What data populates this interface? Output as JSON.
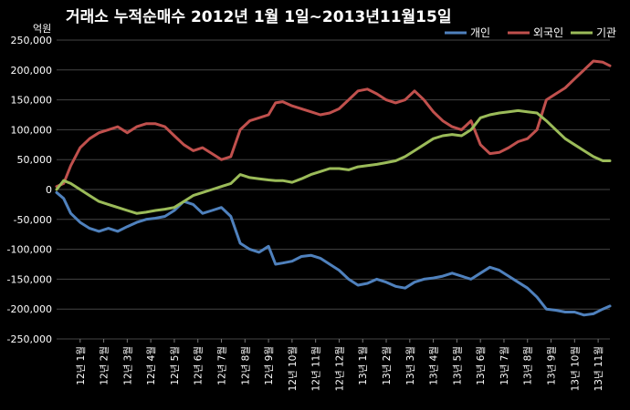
{
  "chart_data": {
    "type": "line",
    "title": "거래소 누적순매수 2012년 1월 1일~2013년11월15일",
    "unit_label": "억원",
    "ylim": [
      -250000,
      250000
    ],
    "yticks": [
      250000,
      200000,
      150000,
      100000,
      50000,
      0,
      -50000,
      -100000,
      -150000,
      -200000,
      -250000
    ],
    "ytick_labels": [
      "250,000",
      "200,000",
      "150,000",
      "100,000",
      "50,000",
      "0",
      "-50,000",
      "-100,000",
      "-150,000",
      "-200,000",
      "-250,000"
    ],
    "xlim": [
      0,
      23.5
    ],
    "categories": [
      "12년 1월",
      "12년 2월",
      "12년 3월",
      "12년 4월",
      "12년 5월",
      "12년 6월",
      "12년 7월",
      "12년 8월",
      "12년 9월",
      "12년 10월",
      "12년 11월",
      "12년 12월",
      "13년 1월",
      "13년 2월",
      "13년 3월",
      "13년 4월",
      "13년 5월",
      "13년 6월",
      "13년 7월",
      "13년 8월",
      "13년 9월",
      "13년 10월",
      "13년 11월"
    ],
    "legend_position": "top-right",
    "grid": true,
    "series": [
      {
        "name": "개인",
        "color": "#4f81bd",
        "x": [
          0,
          0.3,
          0.6,
          1.0,
          1.4,
          1.8,
          2.2,
          2.6,
          3.0,
          3.4,
          3.8,
          4.2,
          4.6,
          5.0,
          5.4,
          5.8,
          6.2,
          6.6,
          7.0,
          7.4,
          7.8,
          8.2,
          8.6,
          9.0,
          9.3,
          9.6,
          10.0,
          10.4,
          10.8,
          11.2,
          11.6,
          12.0,
          12.4,
          12.8,
          13.2,
          13.6,
          14.0,
          14.4,
          14.8,
          15.2,
          15.6,
          16.0,
          16.4,
          16.8,
          17.2,
          17.6,
          18.0,
          18.4,
          18.8,
          19.2,
          19.6,
          20.0,
          20.4,
          20.8,
          21.2,
          21.6,
          22.0,
          22.4,
          22.8,
          23.2,
          23.5
        ],
        "y": [
          -5000,
          -15000,
          -40000,
          -55000,
          -65000,
          -70000,
          -65000,
          -70000,
          -62000,
          -55000,
          -50000,
          -48000,
          -45000,
          -35000,
          -20000,
          -25000,
          -40000,
          -35000,
          -30000,
          -45000,
          -90000,
          -100000,
          -105000,
          -95000,
          -125000,
          -123000,
          -120000,
          -112000,
          -110000,
          -115000,
          -125000,
          -135000,
          -150000,
          -160000,
          -157000,
          -150000,
          -155000,
          -162000,
          -165000,
          -155000,
          -150000,
          -148000,
          -145000,
          -140000,
          -145000,
          -150000,
          -140000,
          -130000,
          -135000,
          -145000,
          -155000,
          -165000,
          -180000,
          -200000,
          -202000,
          -205000,
          -205000,
          -210000,
          -208000,
          -200000,
          -195000
        ]
      },
      {
        "name": "외국인",
        "color": "#c0504d",
        "x": [
          0,
          0.3,
          0.6,
          1.0,
          1.4,
          1.8,
          2.2,
          2.6,
          3.0,
          3.4,
          3.8,
          4.2,
          4.6,
          5.0,
          5.4,
          5.8,
          6.2,
          6.6,
          7.0,
          7.4,
          7.8,
          8.2,
          8.6,
          9.0,
          9.3,
          9.6,
          10.0,
          10.4,
          10.8,
          11.2,
          11.6,
          12.0,
          12.4,
          12.8,
          13.2,
          13.6,
          14.0,
          14.4,
          14.8,
          15.2,
          15.6,
          16.0,
          16.4,
          16.8,
          17.2,
          17.6,
          18.0,
          18.4,
          18.8,
          19.2,
          19.6,
          20.0,
          20.4,
          20.8,
          21.2,
          21.6,
          22.0,
          22.4,
          22.8,
          23.2,
          23.5
        ],
        "y": [
          5000,
          10000,
          40000,
          70000,
          85000,
          95000,
          100000,
          105000,
          95000,
          105000,
          110000,
          110000,
          105000,
          90000,
          75000,
          65000,
          70000,
          60000,
          50000,
          55000,
          100000,
          115000,
          120000,
          125000,
          145000,
          147000,
          140000,
          135000,
          130000,
          125000,
          128000,
          135000,
          150000,
          165000,
          168000,
          160000,
          150000,
          145000,
          150000,
          165000,
          150000,
          130000,
          115000,
          105000,
          100000,
          115000,
          75000,
          60000,
          62000,
          70000,
          80000,
          85000,
          100000,
          150000,
          160000,
          170000,
          185000,
          200000,
          215000,
          213000,
          207000
        ]
      },
      {
        "name": "기관",
        "color": "#9bbb59",
        "x": [
          0,
          0.3,
          0.6,
          1.0,
          1.4,
          1.8,
          2.2,
          2.6,
          3.0,
          3.4,
          3.8,
          4.2,
          4.6,
          5.0,
          5.4,
          5.8,
          6.2,
          6.6,
          7.0,
          7.4,
          7.8,
          8.2,
          8.6,
          9.0,
          9.3,
          9.6,
          10.0,
          10.4,
          10.8,
          11.2,
          11.6,
          12.0,
          12.4,
          12.8,
          13.2,
          13.6,
          14.0,
          14.4,
          14.8,
          15.2,
          15.6,
          16.0,
          16.4,
          16.8,
          17.2,
          17.6,
          18.0,
          18.4,
          18.8,
          19.2,
          19.6,
          20.0,
          20.4,
          20.8,
          21.2,
          21.6,
          22.0,
          22.4,
          22.8,
          23.2,
          23.5
        ],
        "y": [
          0,
          15000,
          10000,
          0,
          -10000,
          -20000,
          -25000,
          -30000,
          -35000,
          -40000,
          -38000,
          -35000,
          -33000,
          -30000,
          -20000,
          -10000,
          -5000,
          0,
          5000,
          10000,
          25000,
          20000,
          18000,
          16000,
          15000,
          15000,
          12000,
          18000,
          25000,
          30000,
          35000,
          35000,
          33000,
          38000,
          40000,
          42000,
          45000,
          48000,
          55000,
          65000,
          75000,
          85000,
          90000,
          92000,
          90000,
          100000,
          120000,
          125000,
          128000,
          130000,
          132000,
          130000,
          128000,
          115000,
          100000,
          85000,
          75000,
          65000,
          55000,
          48000,
          48000
        ]
      }
    ]
  }
}
